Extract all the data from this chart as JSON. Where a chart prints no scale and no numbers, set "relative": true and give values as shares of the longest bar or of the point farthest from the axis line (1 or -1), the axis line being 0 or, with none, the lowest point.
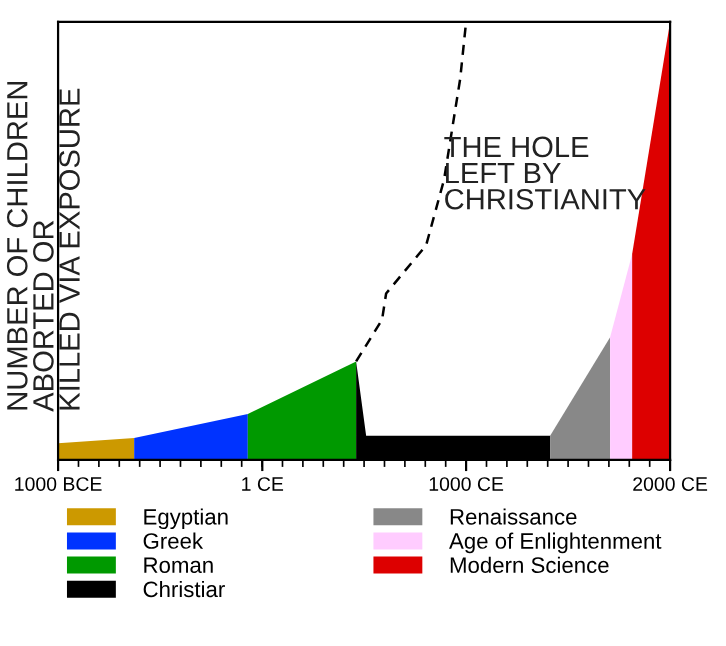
{
  "chart_data": {
    "type": "area",
    "relative": true,
    "ylabel": "NUMBER OF CHILDREN\nABORTED OR\nKILLED VIA EXPOSURE",
    "annotations": [
      "THE HOLE\nLEFT BY\nCHRISTIANITY"
    ],
    "xlim": [
      -1000,
      2000
    ],
    "xticks": [
      {
        "value": -1000,
        "label": "1000 BCE"
      },
      {
        "value": 1,
        "label": "1 CE"
      },
      {
        "value": 1000,
        "label": "1000 CE"
      },
      {
        "value": 2000,
        "label": "2000 CE"
      }
    ],
    "grid": false,
    "legend": "bottom",
    "series": [
      {
        "name": "Egyptian",
        "color": "#cc9900",
        "x": [
          -1000,
          -627
        ],
        "values": [
          0.038,
          0.05
        ]
      },
      {
        "name": "Greek",
        "color": "#0033ff",
        "x": [
          -627,
          -70
        ],
        "values": [
          0.05,
          0.105
        ]
      },
      {
        "name": "Roman",
        "color": "#009900",
        "x": [
          -70,
          461
        ],
        "values": [
          0.105,
          0.225
        ]
      },
      {
        "name": "Christiar",
        "color": "#000000",
        "x": [
          461,
          510,
          1412
        ],
        "values": [
          0.225,
          0.055,
          0.055
        ]
      },
      {
        "name": "Renaissance",
        "color": "#888888",
        "x": [
          1412,
          1706
        ],
        "values": [
          0.055,
          0.28
        ]
      },
      {
        "name": "Age of Enlightenment",
        "color": "#ffccff",
        "x": [
          1706,
          1814
        ],
        "values": [
          0.28,
          0.47
        ]
      },
      {
        "name": "Modern Science",
        "color": "#dd0000",
        "x": [
          1814,
          2000
        ],
        "values": [
          0.47,
          1.0
        ]
      },
      {
        "type": "line",
        "color": "#000000",
        "line_style": "dashed",
        "x": [
          461,
          588,
          608,
          804,
          892,
          971,
          1000
        ],
        "values": [
          0.225,
          0.32,
          0.38,
          0.49,
          0.64,
          0.87,
          1.0
        ]
      }
    ]
  }
}
